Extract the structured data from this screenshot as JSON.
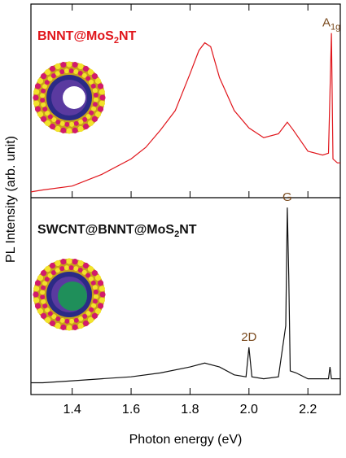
{
  "chart_data": {
    "type": "line",
    "x_label": "Photon energy (eV)",
    "y_label": "PL Intensity (arb. unit)",
    "xlim": [
      1.26,
      2.31
    ],
    "xticks": [
      1.4,
      1.6,
      1.8,
      {
        "value": 2,
        "label": "2.0"
      },
      2.2
    ],
    "panels": [
      {
        "label": {
          "text": "BNNT@MoS",
          "sub": "2",
          "after": "NT"
        },
        "color": "#e0151b",
        "ylim": [
          0,
          1
        ],
        "x": [
          1.26,
          1.3,
          1.4,
          1.5,
          1.6,
          1.65,
          1.7,
          1.75,
          1.8,
          1.83,
          1.85,
          1.87,
          1.9,
          1.95,
          2.0,
          2.05,
          2.1,
          2.13,
          2.15,
          2.2,
          2.25,
          2.27,
          2.28,
          2.285,
          2.3,
          2.31
        ],
        "values": [
          0.03,
          0.04,
          0.06,
          0.12,
          0.2,
          0.26,
          0.35,
          0.45,
          0.64,
          0.76,
          0.8,
          0.78,
          0.62,
          0.45,
          0.36,
          0.31,
          0.33,
          0.39,
          0.35,
          0.24,
          0.22,
          0.23,
          0.85,
          0.2,
          0.18,
          0.18
        ],
        "annotations": [
          {
            "text": "A",
            "sub": "1g",
            "x": 2.28
          }
        ]
      },
      {
        "label": {
          "text": "SWCNT@BNNT@MoS",
          "sub": "2",
          "after": "NT"
        },
        "color": "#111111",
        "ylim": [
          0,
          1
        ],
        "x": [
          1.26,
          1.3,
          1.4,
          1.5,
          1.6,
          1.7,
          1.8,
          1.85,
          1.9,
          1.95,
          1.99,
          2.0,
          2.01,
          2.05,
          2.1,
          2.125,
          2.13,
          2.135,
          2.14,
          2.16,
          2.2,
          2.27,
          2.275,
          2.28,
          2.3,
          2.31
        ],
        "values": [
          0.06,
          0.06,
          0.07,
          0.08,
          0.09,
          0.11,
          0.14,
          0.16,
          0.14,
          0.1,
          0.09,
          0.24,
          0.09,
          0.08,
          0.09,
          0.35,
          0.95,
          0.6,
          0.12,
          0.11,
          0.08,
          0.08,
          0.14,
          0.08,
          0.08,
          0.08
        ],
        "annotations": [
          {
            "text": "G",
            "x": 2.13
          },
          {
            "text": "2D",
            "x": 2.0
          }
        ]
      }
    ]
  }
}
